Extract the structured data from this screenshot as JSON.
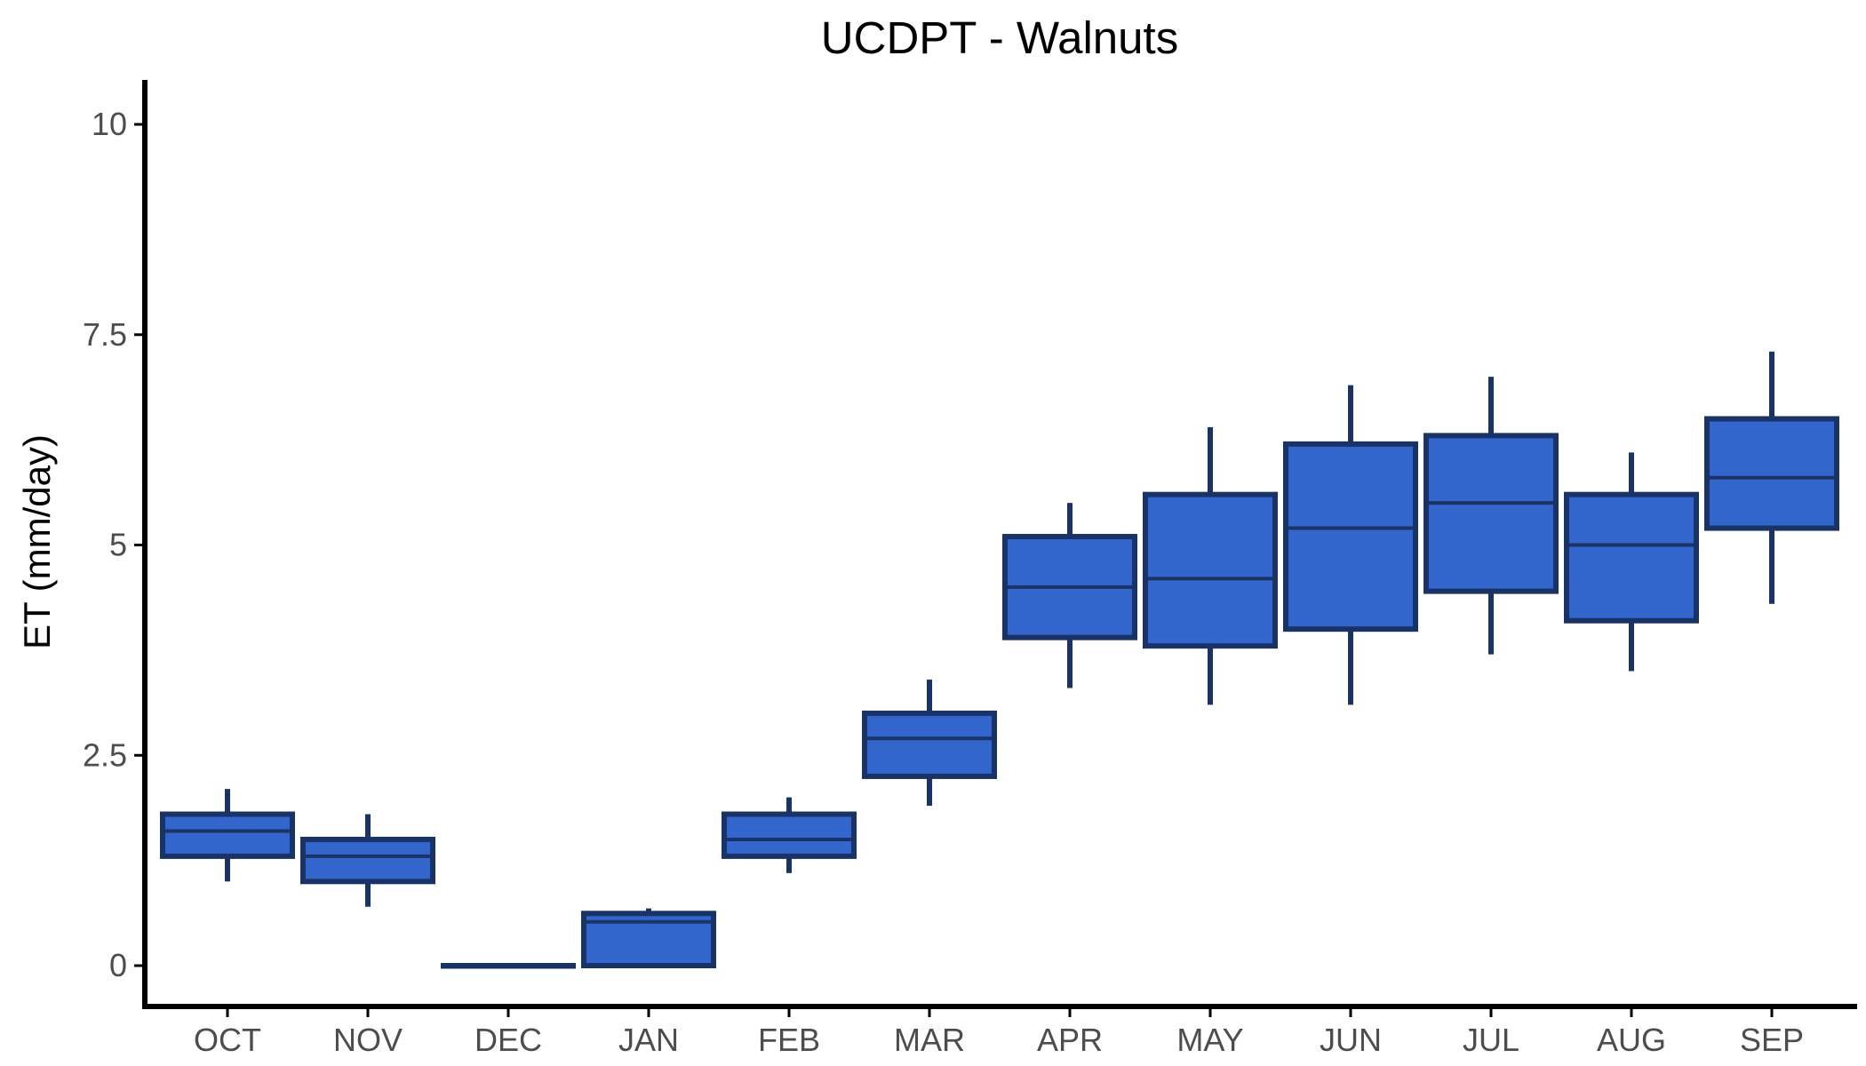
{
  "chart_data": {
    "type": "boxplot",
    "title": "UCDPT - Walnuts",
    "xlabel": "",
    "ylabel": "ET (mm/day)",
    "ylim": [
      -0.5,
      10.5
    ],
    "y_ticks": [
      0,
      2.5,
      5,
      7.5,
      10
    ],
    "y_tick_labels": [
      "0",
      "2.5",
      "5",
      "7.5",
      "10"
    ],
    "categories": [
      "OCT",
      "NOV",
      "DEC",
      "JAN",
      "FEB",
      "MAR",
      "APR",
      "MAY",
      "JUN",
      "JUL",
      "AUG",
      "SEP"
    ],
    "boxes": [
      {
        "label": "OCT",
        "min": 1.0,
        "q1": 1.3,
        "median": 1.6,
        "q3": 1.8,
        "max": 2.1
      },
      {
        "label": "NOV",
        "min": 0.7,
        "q1": 1.0,
        "median": 1.3,
        "q3": 1.5,
        "max": 1.8
      },
      {
        "label": "DEC",
        "min": 0.0,
        "q1": 0.0,
        "median": 0.0,
        "q3": 0.0,
        "max": 0.0
      },
      {
        "label": "JAN",
        "min": 0.0,
        "q1": 0.0,
        "median": 0.52,
        "q3": 0.62,
        "max": 0.68
      },
      {
        "label": "FEB",
        "min": 1.1,
        "q1": 1.3,
        "median": 1.5,
        "q3": 1.8,
        "max": 2.0
      },
      {
        "label": "MAR",
        "min": 1.9,
        "q1": 2.25,
        "median": 2.7,
        "q3": 3.0,
        "max": 3.4
      },
      {
        "label": "APR",
        "min": 3.3,
        "q1": 3.9,
        "median": 4.5,
        "q3": 5.1,
        "max": 5.5
      },
      {
        "label": "MAY",
        "min": 3.1,
        "q1": 3.8,
        "median": 4.6,
        "q3": 5.6,
        "max": 6.4
      },
      {
        "label": "JUN",
        "min": 3.1,
        "q1": 4.0,
        "median": 5.2,
        "q3": 6.2,
        "max": 6.9
      },
      {
        "label": "JUL",
        "min": 3.7,
        "q1": 4.45,
        "median": 5.5,
        "q3": 6.3,
        "max": 7.0
      },
      {
        "label": "AUG",
        "min": 3.5,
        "q1": 4.1,
        "median": 5.0,
        "q3": 5.6,
        "max": 6.1
      },
      {
        "label": "SEP",
        "min": 4.3,
        "q1": 5.2,
        "median": 5.8,
        "q3": 6.5,
        "max": 7.3
      }
    ],
    "colors": {
      "fill": "#3366cc",
      "stroke": "#1a3366",
      "axis": "#000000",
      "tick_text": "#4d4d4d"
    },
    "grid": false,
    "legend": "none"
  }
}
